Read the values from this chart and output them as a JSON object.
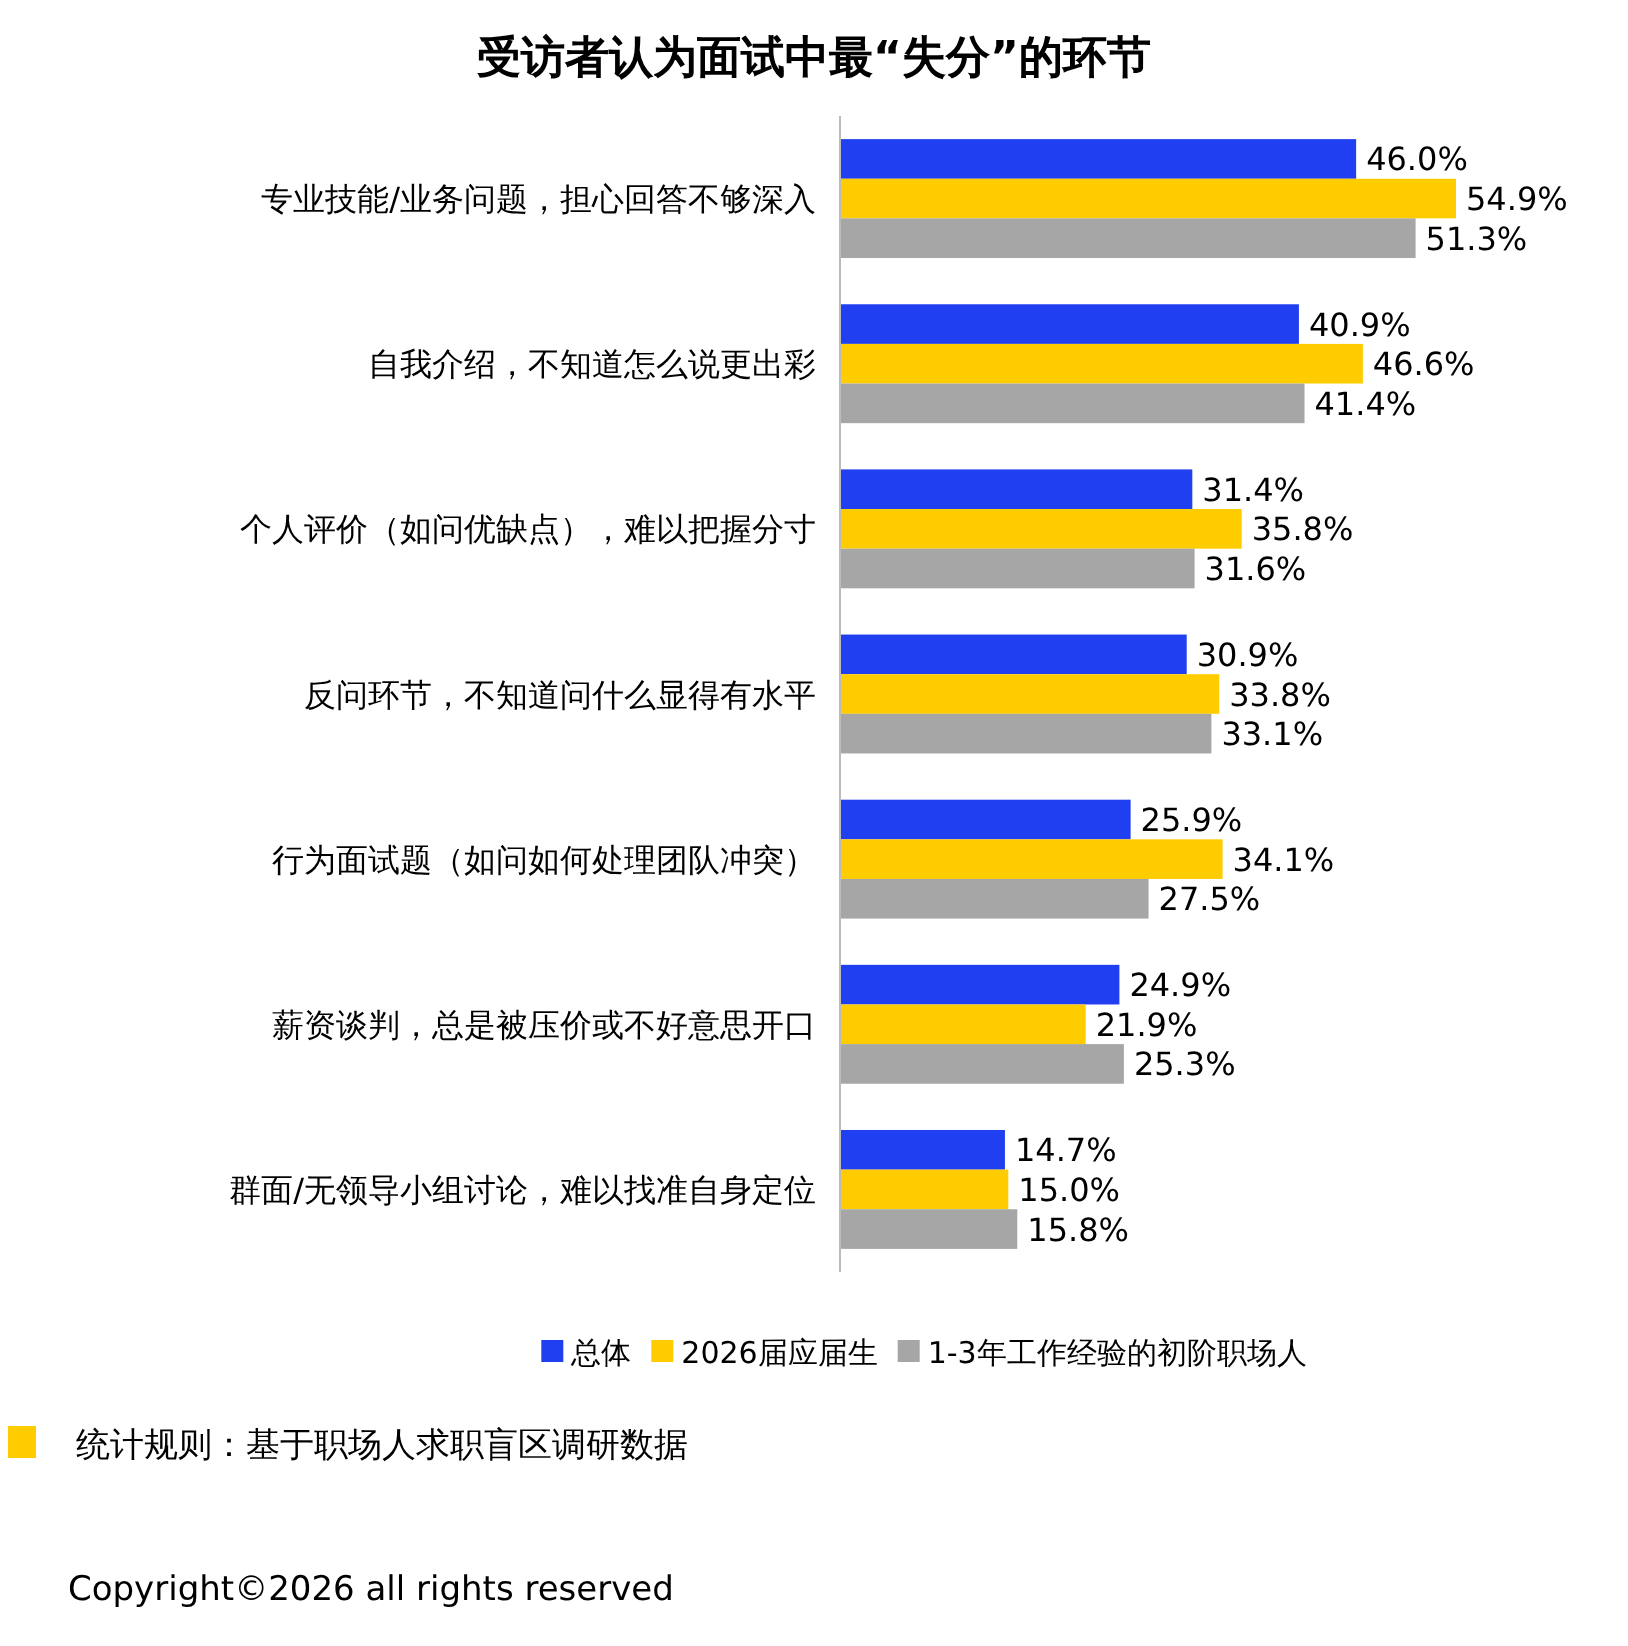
{
  "chart_data": {
    "type": "bar",
    "orientation": "horizontal",
    "title": "受访者认为面试中最“失分”的环节",
    "categories": [
      "专业技能/业务问题，担心回答不够深入",
      "自我介绍，不知道怎么说更出彩",
      "个人评价（如问优缺点），难以把握分寸",
      "反问环节，不知道问什么显得有水平",
      "行为面试题（如问如何处理团队冲突）",
      "薪资谈判，总是被压价或不好意思开口",
      "群面/无领导小组讨论，难以找准自身定位"
    ],
    "series": [
      {
        "name": "总体",
        "color": "#1f3ff0",
        "values": [
          46.0,
          40.9,
          31.4,
          30.9,
          25.9,
          24.9,
          14.7
        ],
        "value_labels": [
          "46.0%",
          "40.9%",
          "31.4%",
          "30.9%",
          "25.9%",
          "24.9%",
          "14.7%"
        ]
      },
      {
        "name": "2026届应届生",
        "color": "#ffcc00",
        "values": [
          54.9,
          46.6,
          35.8,
          33.8,
          34.1,
          21.9,
          15.0
        ],
        "value_labels": [
          "54.9%",
          "46.6%",
          "35.8%",
          "33.8%",
          "34.1%",
          "21.9%",
          "15.0%"
        ]
      },
      {
        "name": "1-3年工作经验的初阶职场人",
        "color": "#a6a6a6",
        "values": [
          51.3,
          41.4,
          31.6,
          33.1,
          27.5,
          25.3,
          15.8
        ],
        "value_labels": [
          "51.3%",
          "41.4%",
          "31.6%",
          "33.1%",
          "27.5%",
          "25.3%",
          "15.8%"
        ]
      }
    ],
    "legend": "bottom",
    "annotations": [
      "统计规则：基于职场人求职盲区调研数据",
      "Copyright©2026 all rights reserved"
    ]
  }
}
